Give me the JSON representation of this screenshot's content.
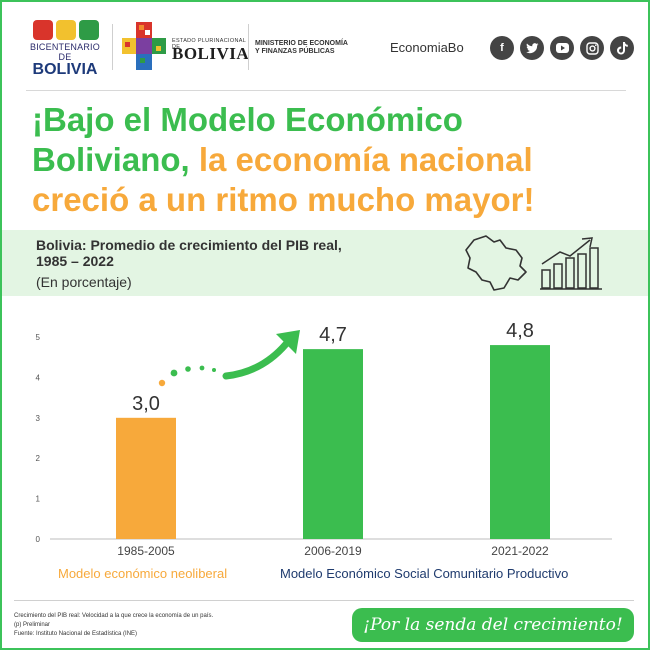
{
  "header": {
    "bicentenario_label": "BICENTENARIO DE",
    "bicentenario_country": "BOLIVIA",
    "estado_small": "ESTADO PLURINACIONAL DE",
    "estado_big": "BOLIVIA",
    "ministerio_line1": "MINISTERIO DE ECONOMÍA",
    "ministerio_line2": "Y FINANZAS PÚBLICAS",
    "handle": "EconomiaBo",
    "social_icons": [
      "facebook-icon",
      "twitter-icon",
      "youtube-icon",
      "instagram-icon",
      "tiktok-icon"
    ]
  },
  "headline": {
    "part1_green": "¡Bajo el Modelo Económico",
    "part2_green": "Boliviano,",
    "part3_orange": " la economía nacional",
    "part4_orange": "creció a un ritmo mucho mayor!"
  },
  "subtitle": {
    "line1": "Bolivia: Promedio de crecimiento del PIB real,",
    "line2": "1985 – 2022",
    "unit": "(En porcentaje)"
  },
  "chart_data": {
    "type": "bar",
    "categories": [
      "1985-2005",
      "2006-2019",
      "2021-2022"
    ],
    "values": [
      3.0,
      4.7,
      4.8
    ],
    "value_labels": [
      "3,0",
      "4,7",
      "4,8"
    ],
    "bar_colors": [
      "#f7a93b",
      "#3bbd4f",
      "#3bbd4f"
    ],
    "ylim": [
      0,
      5
    ],
    "yticks": [
      "0",
      "1",
      "2",
      "3",
      "4",
      "5"
    ],
    "grid": false,
    "category_subtitles": [
      {
        "text": "Modelo económico neoliberal",
        "color": "#f7a93b"
      },
      {
        "text": "Modelo Económico Social Comunitario Productivo",
        "color": "#1f3b6e"
      }
    ]
  },
  "footer": {
    "note1": "Crecimiento del PIB real: Velocidad a la que crece la economía de un país.",
    "note2": "(p) Preliminar",
    "note3": "Fuente: Instituto Nacional de Estadística (INE)",
    "slogan": "¡Por la senda del crecimiento!"
  },
  "colors": {
    "green": "#3bbd4f",
    "orange": "#f7a93b",
    "navy": "#1f3b6e",
    "band": "#e3f5e3"
  }
}
